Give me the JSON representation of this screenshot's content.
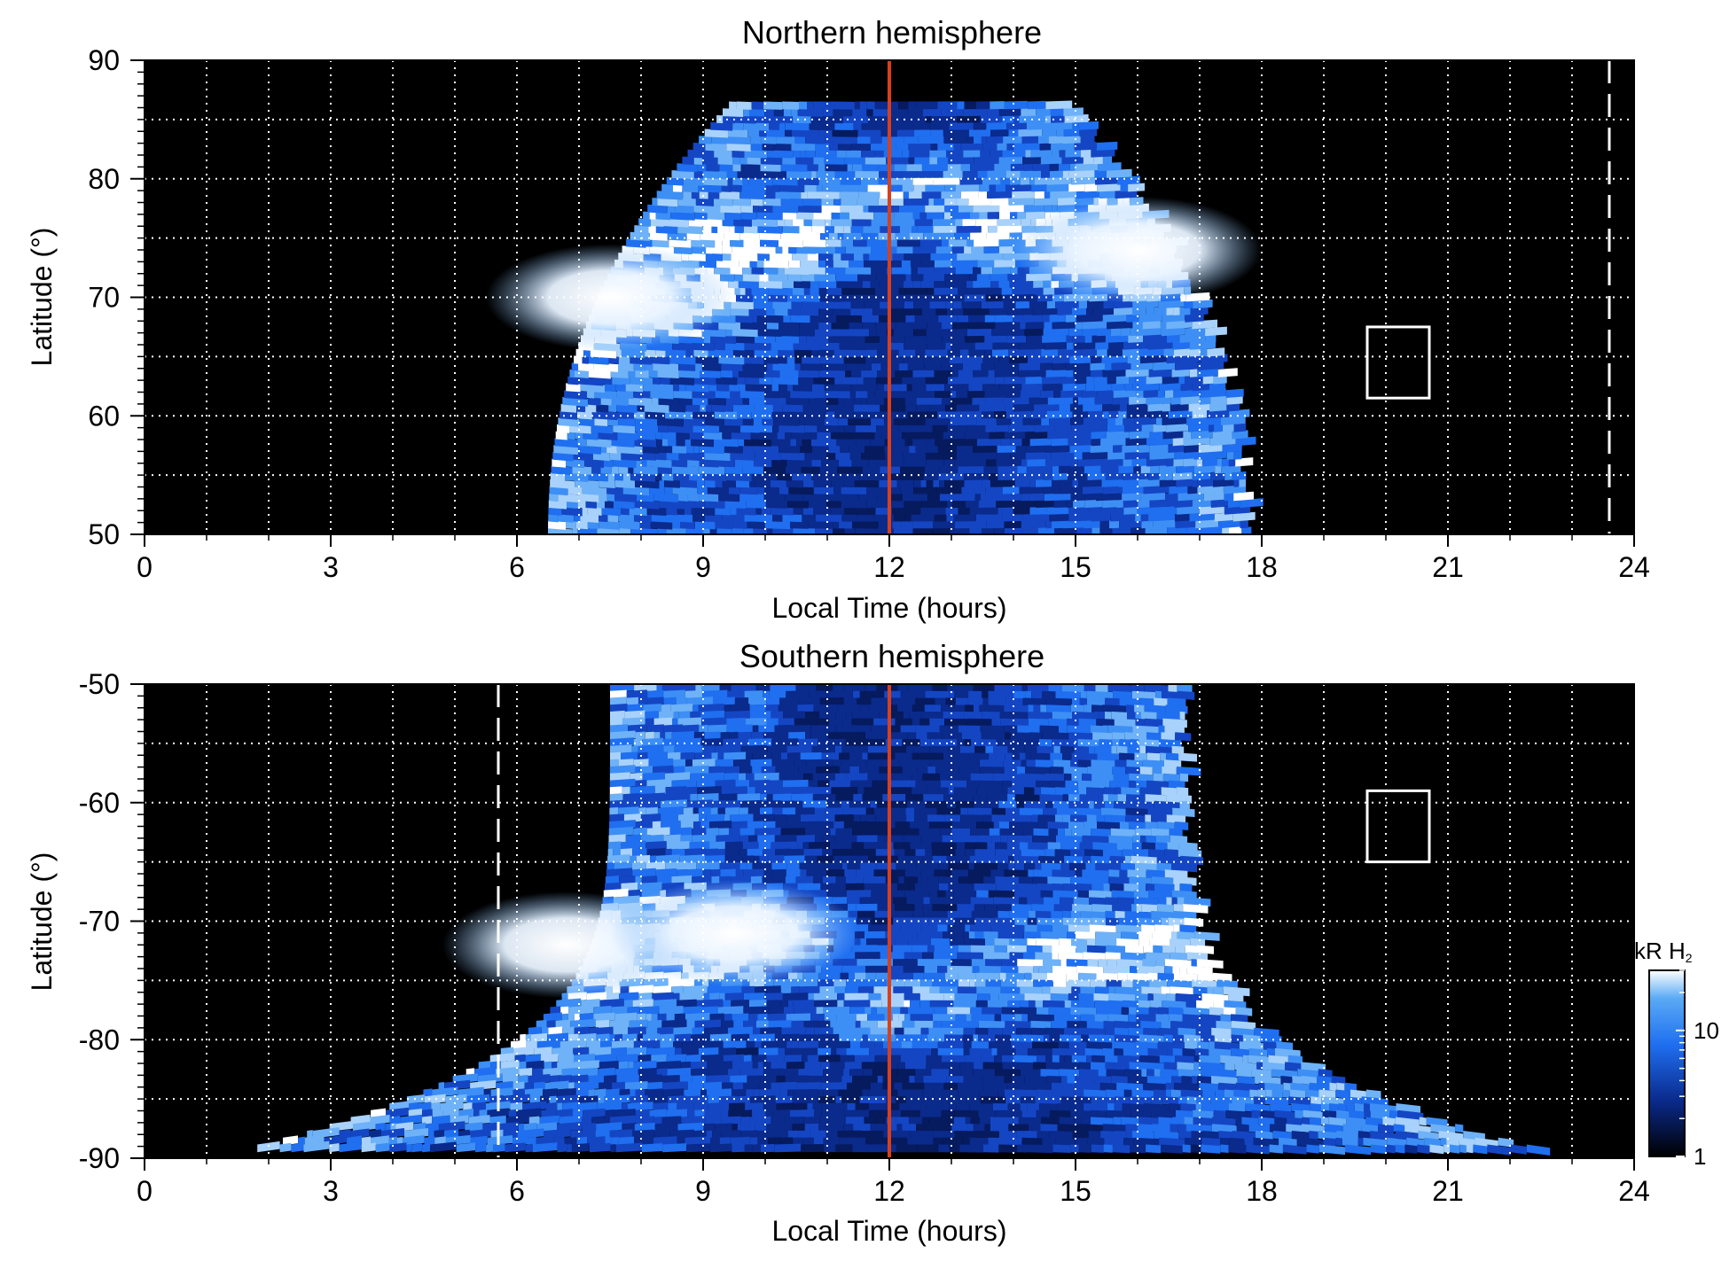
{
  "chart_data": [
    {
      "type": "heatmap",
      "title": "Northern hemisphere",
      "xlabel": "Local Time (hours)",
      "ylabel": "Latitude (°)",
      "xlim": [
        0,
        24
      ],
      "ylim": [
        50,
        90
      ],
      "xticks": [
        "0",
        "3",
        "6",
        "9",
        "12",
        "15",
        "18",
        "21",
        "24"
      ],
      "yticks": [
        "50",
        "60",
        "70",
        "80",
        "90"
      ],
      "grid": true,
      "noon_line_x": 12,
      "dashed_line_x": 23.6,
      "box": {
        "x": [
          19.7,
          20.7
        ],
        "y": [
          61.5,
          67.5
        ]
      },
      "coverage": {
        "x": [
          6.5,
          17.8
        ],
        "y": [
          50,
          87
        ]
      },
      "auroral_oval": [
        {
          "x": 7.5,
          "y": 70,
          "brightness": 18
        },
        {
          "x": 10,
          "y": 75,
          "brightness": 12
        },
        {
          "x": 12,
          "y": 80,
          "brightness": 10
        },
        {
          "x": 14,
          "y": 76,
          "brightness": 11
        },
        {
          "x": 16,
          "y": 74,
          "brightness": 18
        }
      ]
    },
    {
      "type": "heatmap",
      "title": "Southern hemisphere",
      "xlabel": "Local Time (hours)",
      "ylabel": "Latitude (°)",
      "xlim": [
        0,
        24
      ],
      "ylim": [
        -90,
        -50
      ],
      "xticks": [
        "0",
        "3",
        "6",
        "9",
        "12",
        "15",
        "18",
        "21",
        "24"
      ],
      "yticks": [
        "-50",
        "-60",
        "-70",
        "-80",
        "-90"
      ],
      "grid": true,
      "noon_line_x": 12,
      "dashed_line_x": 5.7,
      "box": {
        "x": [
          19.7,
          20.7
        ],
        "y": [
          -65,
          -59
        ]
      },
      "coverage": {
        "x": [
          1.5,
          23.3
        ],
        "y": [
          -89,
          -50
        ]
      },
      "auroral_oval": [
        {
          "x": 6.8,
          "y": -72,
          "brightness": 20
        },
        {
          "x": 9.5,
          "y": -71,
          "brightness": 14
        },
        {
          "x": 12,
          "y": -77,
          "brightness": 10
        },
        {
          "x": 14.5,
          "y": -73,
          "brightness": 9
        },
        {
          "x": 17.5,
          "y": -72,
          "brightness": 12
        }
      ]
    }
  ],
  "colorbar": {
    "label_prefix": "kR H",
    "label_subscript": "2",
    "ticks": [
      "10",
      "1"
    ],
    "range": [
      1,
      30
    ],
    "scale": "log",
    "colors": [
      "#000000",
      "#0a2a8c",
      "#1f6ff0",
      "#5aaaf5",
      "#ffffff"
    ]
  },
  "colors": {
    "noon_line": "#d9401a",
    "grid": "#ffffff",
    "box": "#ffffff",
    "background": "#000000"
  }
}
